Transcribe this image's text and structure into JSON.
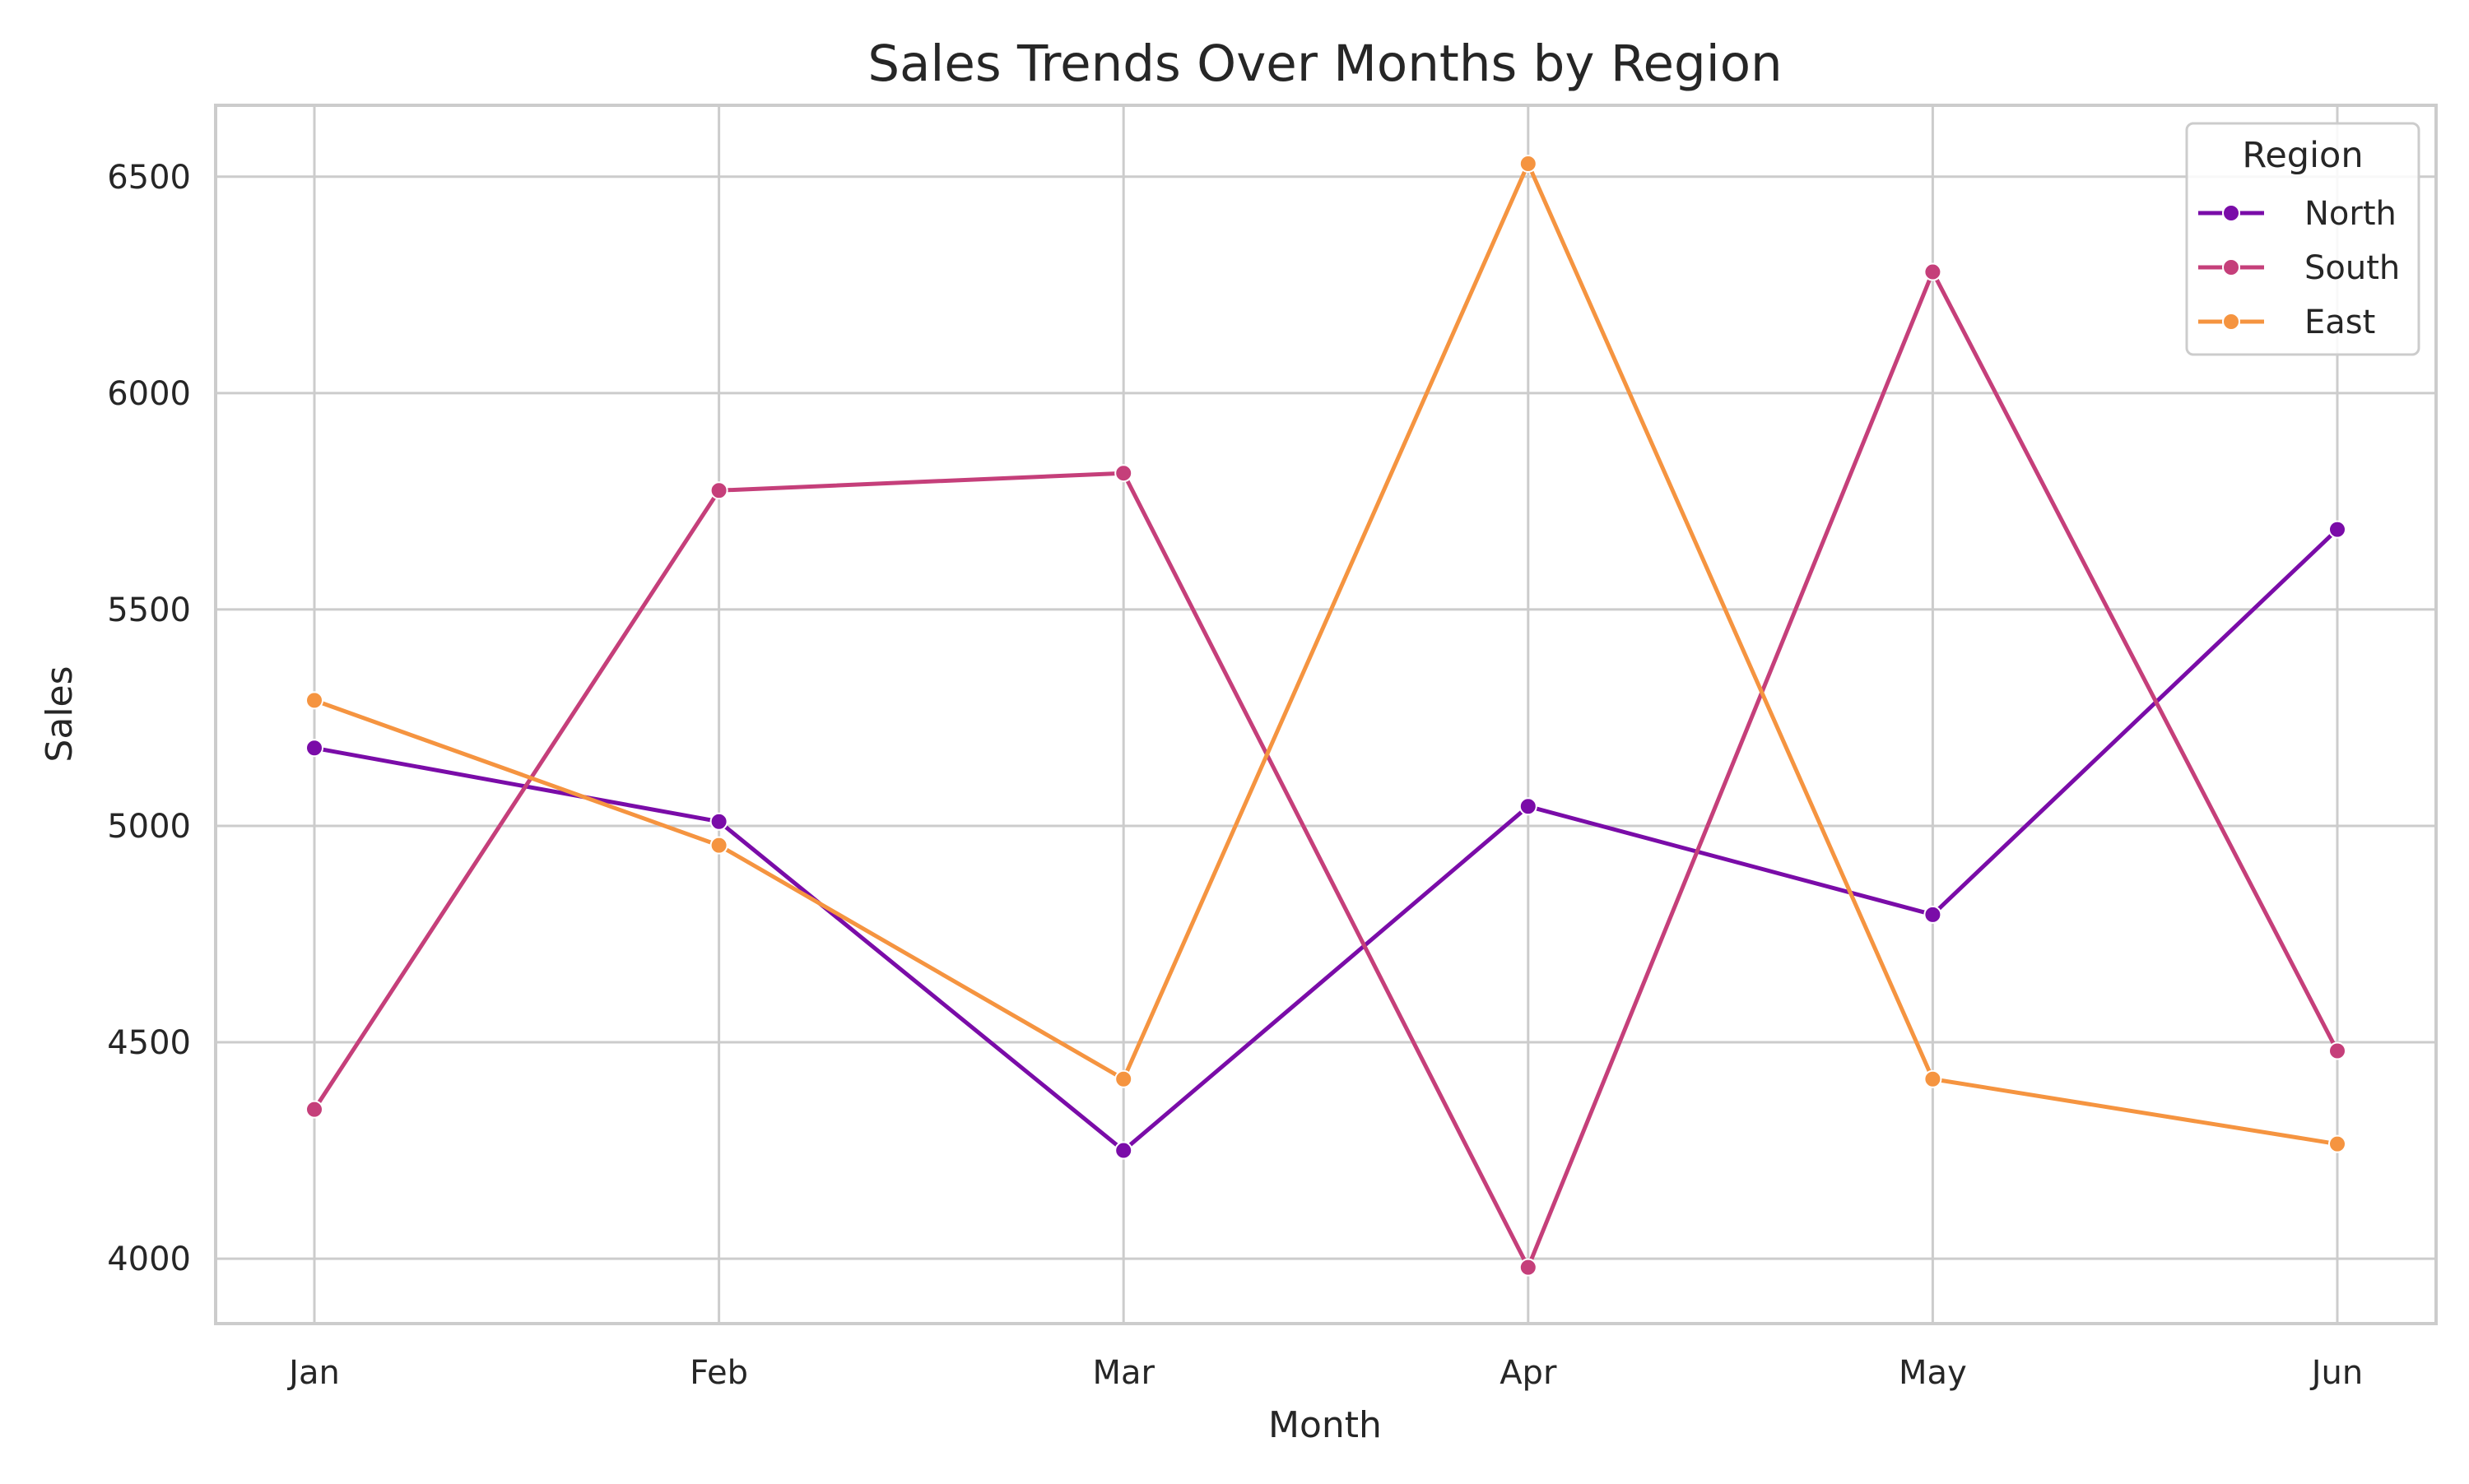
{
  "chart_data": {
    "type": "line",
    "title": "Sales Trends Over Months by Region",
    "xlabel": "Month",
    "ylabel": "Sales",
    "categories": [
      "Jan",
      "Feb",
      "Mar",
      "Apr",
      "May",
      "Jun"
    ],
    "ylim": [
      3850,
      6665
    ],
    "yticks": [
      4000,
      4500,
      5000,
      5500,
      6000,
      6500
    ],
    "grid": true,
    "legend": {
      "title": "Region",
      "placement": "top-right"
    },
    "series": [
      {
        "name": "North",
        "color": "#7a0ca8",
        "values": [
          5180,
          5010,
          4250,
          5045,
          4795,
          5685
        ]
      },
      {
        "name": "South",
        "color": "#c53f7a",
        "values": [
          4345,
          5775,
          5815,
          3980,
          6280,
          4480
        ]
      },
      {
        "name": "East",
        "color": "#f59440",
        "values": [
          5290,
          4955,
          4415,
          6530,
          4415,
          4265
        ]
      }
    ]
  }
}
